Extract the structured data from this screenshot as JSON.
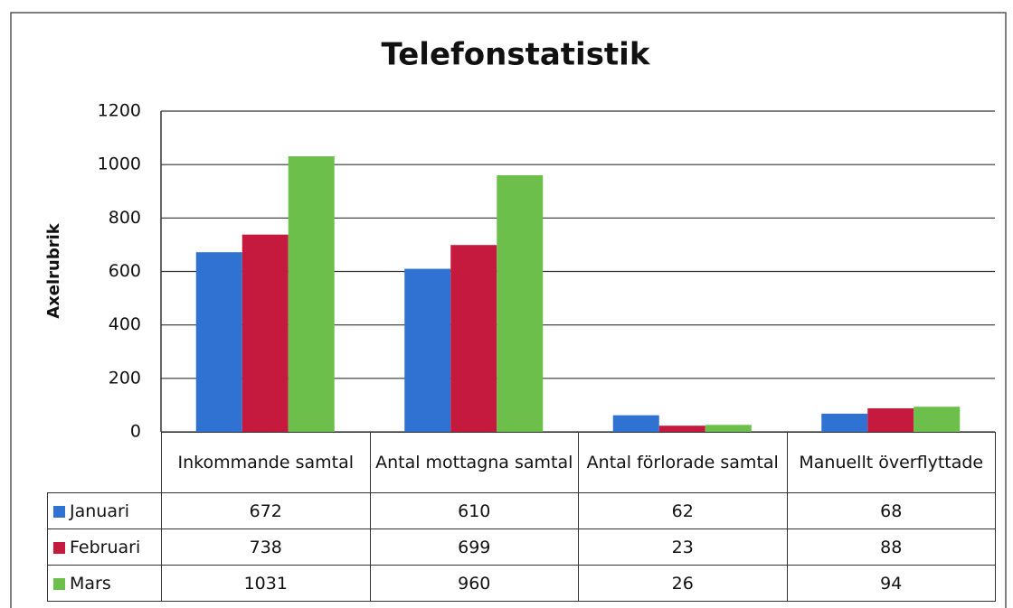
{
  "chart_data": {
    "type": "bar",
    "title": "Telefonstatistik",
    "y_label": "Axelrubrik",
    "categories": [
      "Inkommande samtal",
      "Antal mottagna samtal",
      "Antal förlorade samtal",
      "Manuellt överflyttade"
    ],
    "series": [
      {
        "name": "Januari",
        "color": "#2f72d2",
        "values": [
          672,
          610,
          62,
          68
        ]
      },
      {
        "name": "Februari",
        "color": "#c51a3e",
        "values": [
          738,
          699,
          23,
          88
        ]
      },
      {
        "name": "Mars",
        "color": "#6dbf4b",
        "values": [
          1031,
          960,
          26,
          94
        ]
      }
    ],
    "ylim": [
      0,
      1200
    ],
    "yticks": [
      0,
      200,
      400,
      600,
      800,
      1000,
      1200
    ],
    "grid": true
  }
}
